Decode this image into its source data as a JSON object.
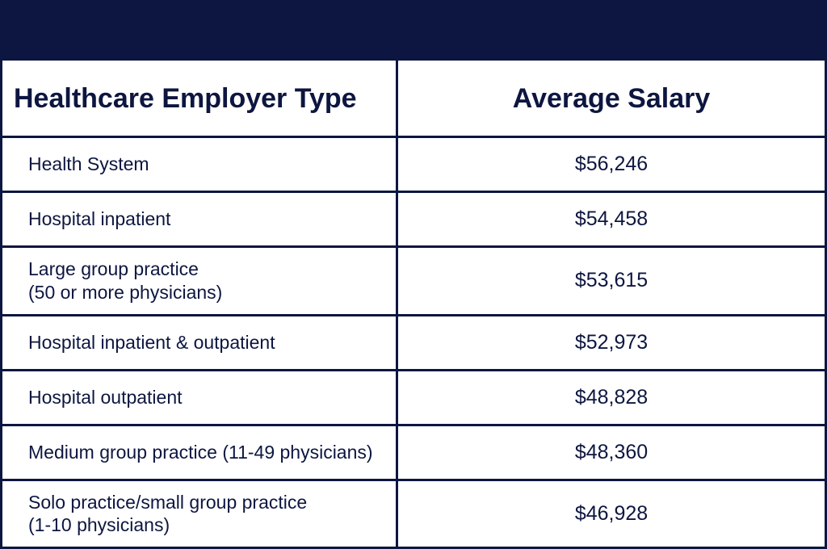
{
  "table": {
    "type": "table",
    "header_background": "#0d1640",
    "border_color": "#0d1640",
    "text_color": "#0d1640",
    "background_color": "#ffffff",
    "header_fontsize": 34,
    "header_fontweight": 800,
    "cell_fontsize_label": 23,
    "cell_fontsize_salary": 25,
    "columns": [
      {
        "label": "Healthcare Employer Type",
        "align": "left"
      },
      {
        "label": "Average Salary",
        "align": "center"
      }
    ],
    "rows": [
      {
        "label": "Health System",
        "salary": "$56,246"
      },
      {
        "label": "Hospital inpatient",
        "salary": "$54,458"
      },
      {
        "label": "Large group practice\n(50 or more physicians)",
        "salary": "$53,615"
      },
      {
        "label": "Hospital inpatient & outpatient",
        "salary": "$52,973"
      },
      {
        "label": "Hospital outpatient",
        "salary": "$48,828"
      },
      {
        "label": "Medium group practice (11-49 physicians)",
        "salary": "$48,360"
      },
      {
        "label": "Solo practice/small group practice\n (1-10 physicians)",
        "salary": "$46,928"
      }
    ]
  }
}
